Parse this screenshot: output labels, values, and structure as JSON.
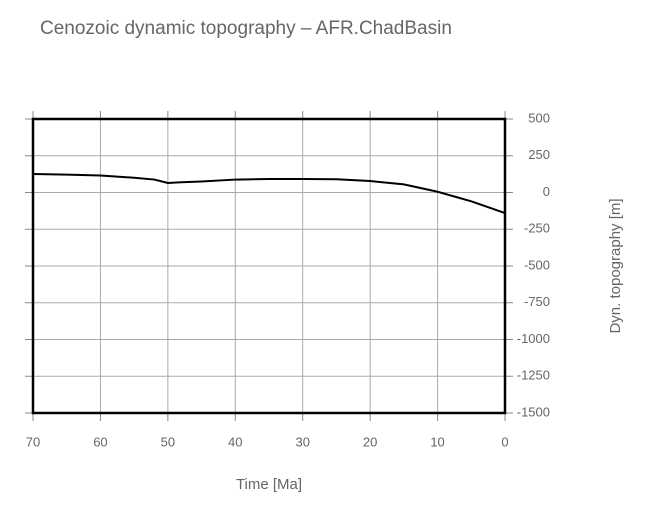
{
  "chart_data": {
    "type": "line",
    "title": "Cenozoic dynamic topography – AFR.ChadBasin",
    "x_label": "Time [Ma]",
    "y_label": "Dyn. topography [m]",
    "x": [
      70,
      65,
      60,
      55,
      52,
      50,
      48,
      45,
      40,
      35,
      30,
      25,
      20,
      15,
      10,
      5,
      0
    ],
    "series": [
      {
        "name": "AFR.ChadBasin",
        "color": "#000000",
        "values": [
          126,
          122,
          116,
          100,
          88,
          65,
          70,
          75,
          88,
          92,
          92,
          90,
          78,
          55,
          5,
          -60,
          -140
        ]
      }
    ],
    "xlim": [
      70,
      0
    ],
    "xticks": [
      70,
      60,
      50,
      40,
      30,
      20,
      10,
      0
    ],
    "ylim": [
      -1500,
      500
    ],
    "yticks": [
      500,
      250,
      0,
      -250,
      -500,
      -750,
      -1000,
      -1250,
      -1500
    ],
    "grid": true
  }
}
